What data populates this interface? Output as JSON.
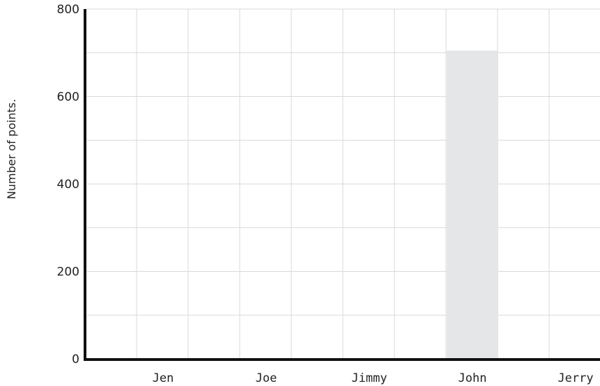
{
  "chart_data": {
    "type": "bar",
    "title": "",
    "xlabel": "",
    "ylabel": "Number of points.",
    "categories": [
      "Jen",
      "Joe",
      "Jimmy",
      "John",
      "Jerry"
    ],
    "values": [
      0,
      0,
      0,
      705,
      0
    ],
    "ylim": [
      0,
      800
    ],
    "yticks": [
      0,
      200,
      400,
      600,
      800
    ],
    "grid": true,
    "legend": "none",
    "colors": {
      "bar": "#e5e6e8",
      "grid": "#d9d9d9",
      "axis": "#111111",
      "text": "#222222"
    }
  }
}
